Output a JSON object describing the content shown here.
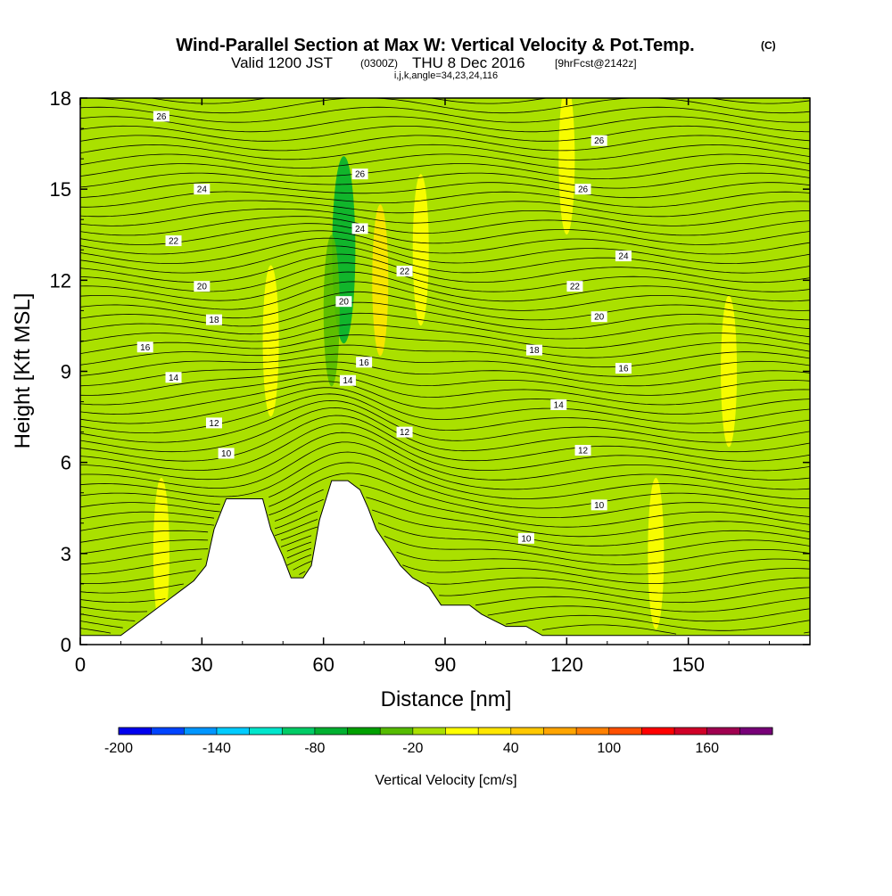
{
  "title": {
    "main": "Wind-Parallel Section at Max W: Vertical Velocity & Pot.Temp.",
    "copyright": "(C)",
    "valid_prefix": "Valid 1200 JST",
    "utc": "(0300Z)",
    "valid_date": "THU 8 Dec 2016",
    "forecast": "[9hrFcst@2142z]",
    "indices": "i,j,k,angle=34,23,24,116"
  },
  "chart_data": {
    "type": "heatmap",
    "xlabel": "Distance [nm]",
    "ylabel": "Height [Kft MSL]",
    "xlim": [
      0,
      180
    ],
    "ylim": [
      0,
      18
    ],
    "x_ticks": [
      "0",
      "30",
      "60",
      "90",
      "120",
      "150"
    ],
    "y_ticks": [
      "0",
      "3",
      "6",
      "9",
      "12",
      "15",
      "18"
    ],
    "colorbar": {
      "label": "Vertical Velocity [cm/s]",
      "ticks": [
        "-200",
        "-140",
        "-80",
        "-20",
        "40",
        "100",
        "160"
      ],
      "colors": [
        "#0000ee",
        "#0044ff",
        "#0096ff",
        "#00ccff",
        "#00e6cc",
        "#00cc66",
        "#00b030",
        "#00a000",
        "#55bb00",
        "#aae000",
        "#ffff00",
        "#ffe600",
        "#ffc800",
        "#ffa500",
        "#ff8000",
        "#ff5000",
        "#ff0000",
        "#d00028",
        "#a00050",
        "#780078"
      ]
    },
    "terrain": [
      [
        0,
        0.3
      ],
      [
        10,
        0.3
      ],
      [
        13,
        0.6
      ],
      [
        16,
        0.9
      ],
      [
        19,
        1.2
      ],
      [
        22,
        1.5
      ],
      [
        25,
        1.8
      ],
      [
        28,
        2.1
      ],
      [
        31,
        2.6
      ],
      [
        33,
        3.8
      ],
      [
        36,
        4.8
      ],
      [
        45,
        4.8
      ],
      [
        47,
        3.8
      ],
      [
        50,
        2.9
      ],
      [
        52,
        2.2
      ],
      [
        55,
        2.2
      ],
      [
        57,
        2.6
      ],
      [
        59,
        4.1
      ],
      [
        62,
        5.4
      ],
      [
        66,
        5.4
      ],
      [
        69,
        5.1
      ],
      [
        71,
        4.5
      ],
      [
        73,
        3.8
      ],
      [
        76,
        3.2
      ],
      [
        79,
        2.6
      ],
      [
        82,
        2.2
      ],
      [
        86,
        1.9
      ],
      [
        89,
        1.3
      ],
      [
        96,
        1.3
      ],
      [
        99,
        1.0
      ],
      [
        102,
        0.8
      ],
      [
        105,
        0.6
      ],
      [
        110,
        0.6
      ],
      [
        114,
        0.3
      ],
      [
        180,
        0.3
      ]
    ],
    "w_features": [
      {
        "x": 65,
        "y": 13,
        "w": -80
      },
      {
        "x": 62,
        "y": 11,
        "w": -30
      },
      {
        "x": 74,
        "y": 12,
        "w": 25
      },
      {
        "x": 47,
        "y": 10,
        "w": 15
      },
      {
        "x": 40,
        "y": 14,
        "w": -20
      },
      {
        "x": 96,
        "y": 16,
        "w": -20
      },
      {
        "x": 98,
        "y": 2,
        "w": -20
      },
      {
        "x": 124,
        "y": 4,
        "w": -20
      },
      {
        "x": 126,
        "y": 16,
        "w": -20
      },
      {
        "x": 120,
        "y": 16,
        "w": 15
      },
      {
        "x": 160,
        "y": 9,
        "w": 15
      },
      {
        "x": 142,
        "y": 3,
        "w": 15
      },
      {
        "x": 20,
        "y": 3,
        "w": 15
      },
      {
        "x": 84,
        "y": 13,
        "w": 15
      }
    ],
    "contours": [
      {
        "label": "10",
        "label_at": [
          [
            36,
            6.3
          ],
          [
            110,
            3.5
          ],
          [
            128,
            4.6
          ]
        ]
      },
      {
        "label": "12",
        "label_at": [
          [
            33,
            7.3
          ],
          [
            80,
            7.0
          ],
          [
            124,
            6.4
          ]
        ]
      },
      {
        "label": "14",
        "label_at": [
          [
            23,
            8.8
          ],
          [
            66,
            8.7
          ],
          [
            118,
            7.9
          ]
        ]
      },
      {
        "label": "16",
        "label_at": [
          [
            16,
            9.8
          ],
          [
            70,
            9.3
          ],
          [
            134,
            9.1
          ]
        ]
      },
      {
        "label": "18",
        "label_at": [
          [
            33,
            10.7
          ],
          [
            112,
            9.7
          ]
        ]
      },
      {
        "label": "20",
        "label_at": [
          [
            30,
            11.8
          ],
          [
            65,
            11.3
          ],
          [
            128,
            10.8
          ]
        ]
      },
      {
        "label": "22",
        "label_at": [
          [
            23,
            13.3
          ],
          [
            80,
            12.3
          ],
          [
            122,
            11.8
          ]
        ]
      },
      {
        "label": "24",
        "label_at": [
          [
            30,
            15.0
          ],
          [
            69,
            13.7
          ],
          [
            134,
            12.8
          ]
        ]
      },
      {
        "label": "26",
        "label_at": [
          [
            20,
            17.4
          ],
          [
            69,
            15.5
          ],
          [
            124,
            15.0
          ],
          [
            128,
            16.6
          ]
        ]
      }
    ]
  }
}
